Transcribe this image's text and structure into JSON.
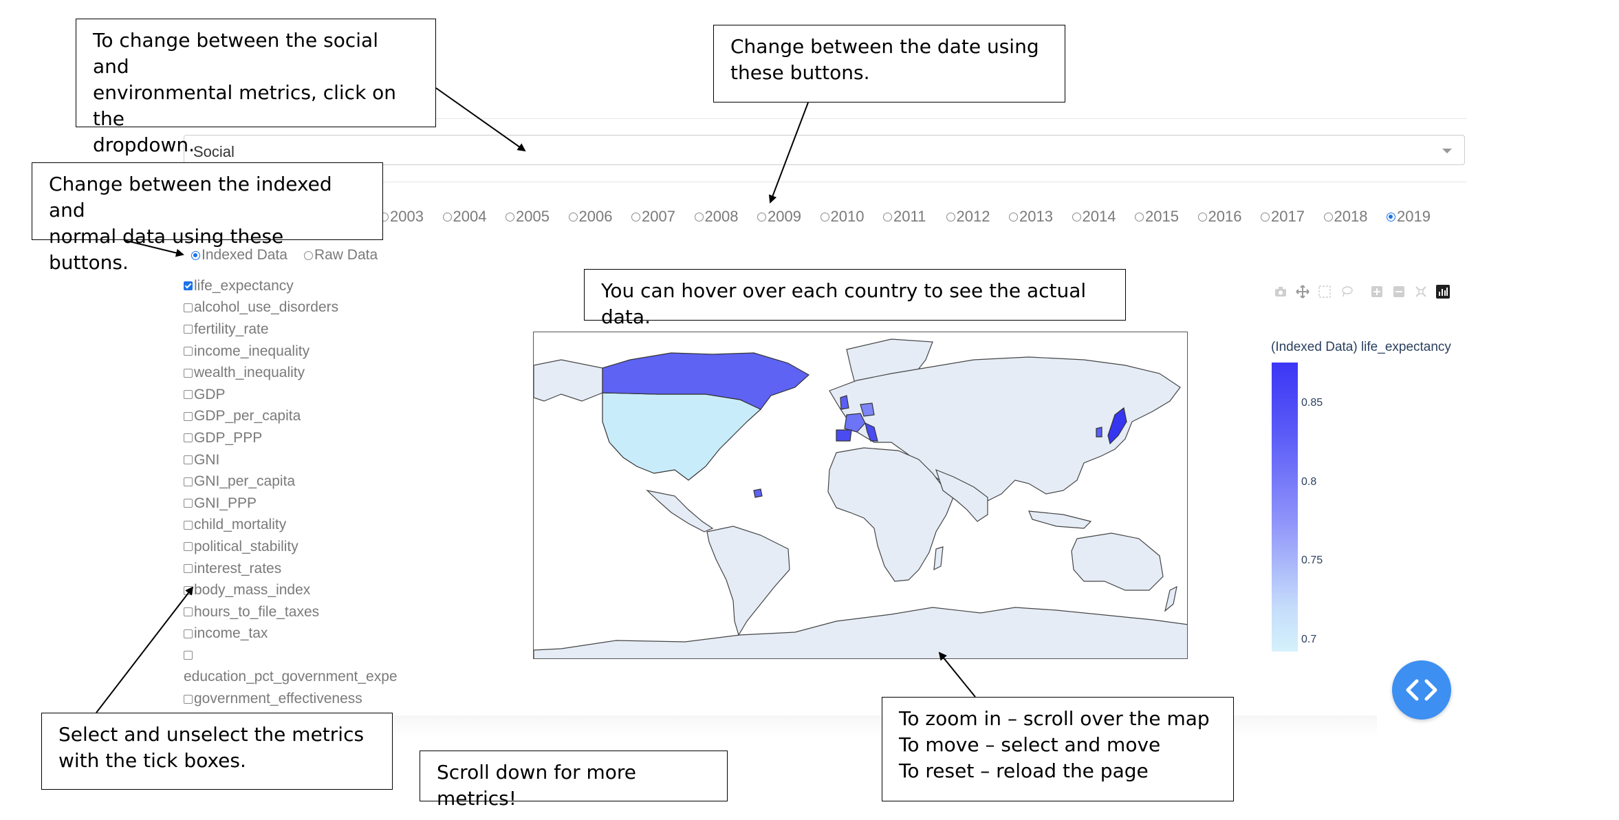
{
  "dropdown": {
    "value": "Social"
  },
  "years": [
    "2003",
    "2004",
    "2005",
    "2006",
    "2007",
    "2008",
    "2009",
    "2010",
    "2011",
    "2012",
    "2013",
    "2014",
    "2015",
    "2016",
    "2017",
    "2018",
    "2019"
  ],
  "selected_year": "2019",
  "data_type": {
    "options": [
      "Indexed Data",
      "Raw Data"
    ],
    "selected": "Indexed Data"
  },
  "metrics": [
    {
      "label": "life_expectancy",
      "checked": true
    },
    {
      "label": "alcohol_use_disorders",
      "checked": false
    },
    {
      "label": "fertility_rate",
      "checked": false
    },
    {
      "label": "income_inequality",
      "checked": false
    },
    {
      "label": "wealth_inequality",
      "checked": false
    },
    {
      "label": "GDP",
      "checked": false
    },
    {
      "label": "GDP_per_capita",
      "checked": false
    },
    {
      "label": "GDP_PPP",
      "checked": false
    },
    {
      "label": "GNI",
      "checked": false
    },
    {
      "label": "GNI_per_capita",
      "checked": false
    },
    {
      "label": "GNI_PPP",
      "checked": false
    },
    {
      "label": "child_mortality",
      "checked": false
    },
    {
      "label": "political_stability",
      "checked": false
    },
    {
      "label": "interest_rates",
      "checked": false
    },
    {
      "label": "body_mass_index",
      "checked": false
    },
    {
      "label": "hours_to_file_taxes",
      "checked": false
    },
    {
      "label": "income_tax",
      "checked": false
    },
    {
      "label": "",
      "checked": false
    },
    {
      "label": "education_pct_government_expe",
      "checked": null
    },
    {
      "label": "government_effectiveness",
      "checked": false
    }
  ],
  "modebar_icons": [
    "camera-icon",
    "pan-icon",
    "box-select-icon",
    "lasso-icon",
    "zoom-in-icon",
    "zoom-out-icon",
    "reset-axes-icon",
    "plotly-logo-icon"
  ],
  "colorbar": {
    "title": "(Indexed Data) life_expectancy",
    "ticks": [
      "0.85",
      "0.8",
      "0.75",
      "0.7"
    ],
    "color_high": "#3b36f5",
    "color_low": "#d4f1fb"
  },
  "colors": {
    "accent": "#1a73e8",
    "land": "#e5ecf6",
    "code_button": "#3d8ff2"
  },
  "annotations": {
    "dropdown_note": "To change between the social and\nenvironmental metrics, click on the\ndropdown.",
    "date_note": "Change between the date using\nthese buttons.",
    "indexed_note": "Change between the indexed and\nnormal data using these buttons.",
    "hover_note": "You can hover over each country to see the actual data.",
    "tickbox_note": "Select and unselect the metrics\nwith the tick boxes.",
    "scroll_note": "Scroll down for more metrics!",
    "zoom_note": "To zoom in – scroll over the map\nTo move – select and move\nTo reset – reload the page"
  }
}
